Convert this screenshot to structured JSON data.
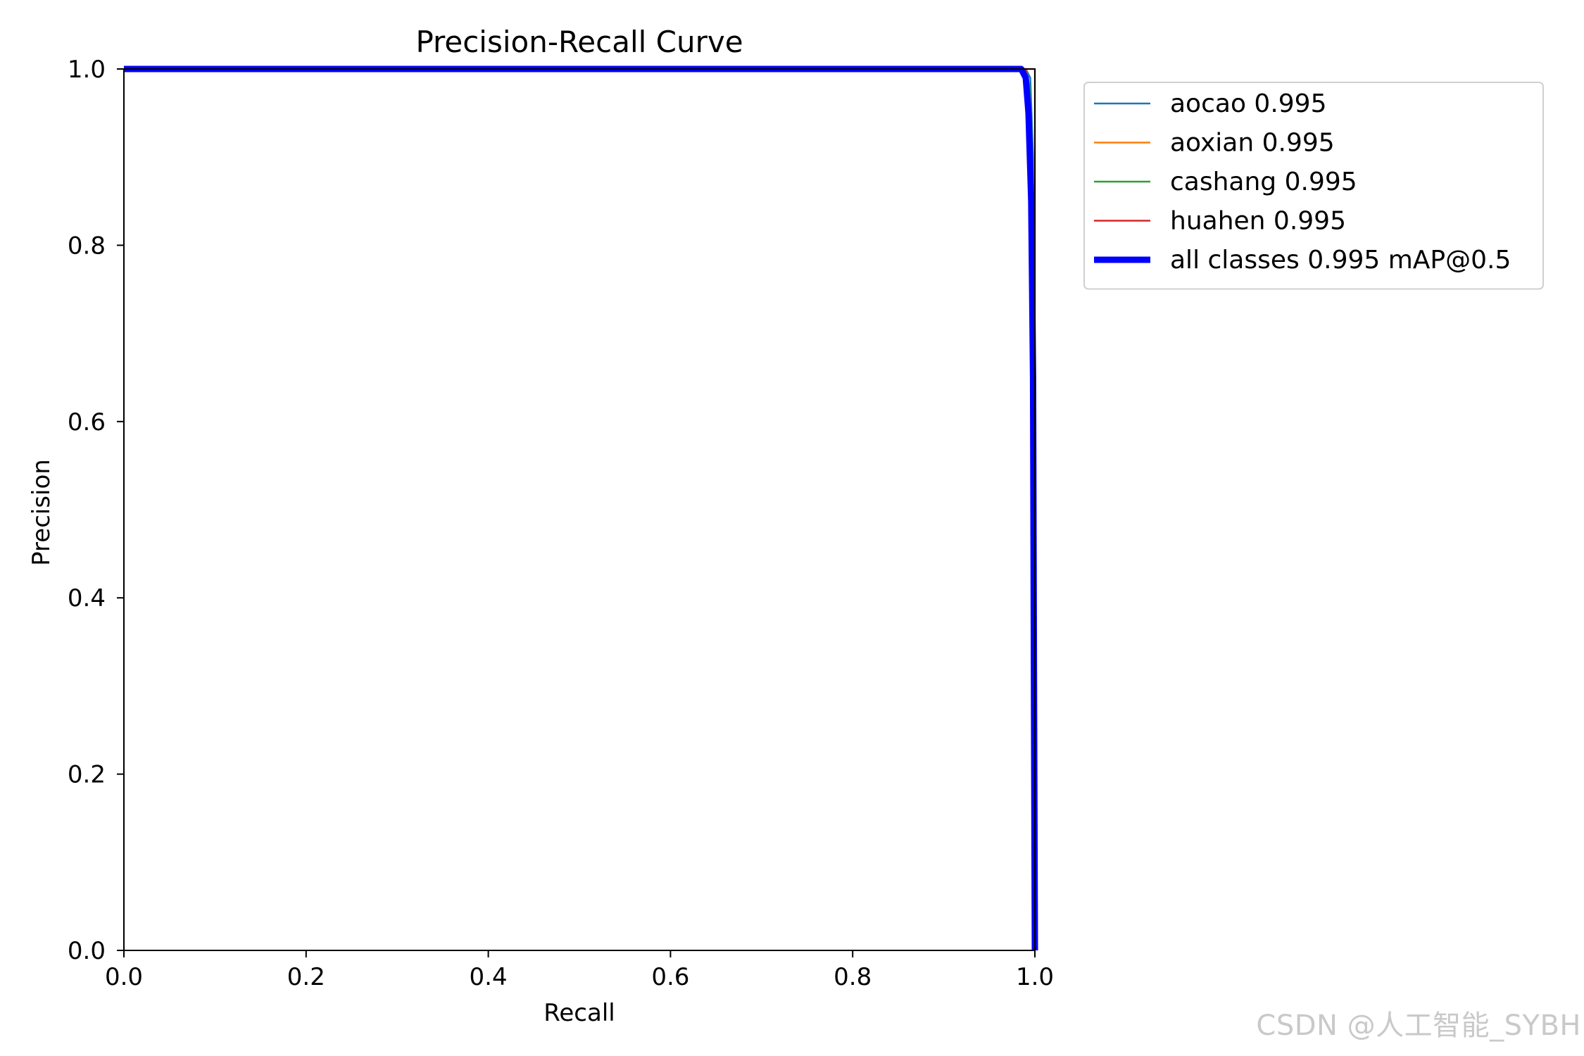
{
  "chart_data": {
    "type": "line",
    "title": "Precision-Recall Curve",
    "xlabel": "Recall",
    "ylabel": "Precision",
    "xlim": [
      0.0,
      1.0
    ],
    "ylim": [
      0.0,
      1.0
    ],
    "xticks": [
      "0.0",
      "0.2",
      "0.4",
      "0.6",
      "0.8",
      "1.0"
    ],
    "yticks": [
      "0.0",
      "0.2",
      "0.4",
      "0.6",
      "0.8",
      "1.0"
    ],
    "grid": false,
    "legend_position": "outside-upper-right",
    "series": [
      {
        "name": "aocao 0.995",
        "color": "#1f77b4",
        "width": "thin",
        "x": [
          0.0,
          0.99,
          0.995,
          0.998,
          1.0,
          1.0
        ],
        "y": [
          1.0,
          1.0,
          0.99,
          0.9,
          0.5,
          0.0
        ]
      },
      {
        "name": "aoxian 0.995",
        "color": "#ff7f0e",
        "width": "thin",
        "x": [
          0.0,
          0.99,
          0.995,
          1.0,
          1.0,
          1.0
        ],
        "y": [
          1.0,
          1.0,
          1.0,
          1.0,
          0.5,
          0.0
        ]
      },
      {
        "name": "cashang 0.995",
        "color": "#2ca02c",
        "width": "thin",
        "x": [
          0.0,
          0.99,
          0.994,
          0.998,
          1.0,
          1.0
        ],
        "y": [
          1.0,
          1.0,
          0.98,
          0.85,
          0.45,
          0.0
        ]
      },
      {
        "name": "huahen 0.995",
        "color": "#d62728",
        "width": "thin",
        "x": [
          0.0,
          0.99,
          0.993,
          0.997,
          0.999,
          1.0
        ],
        "y": [
          1.0,
          1.0,
          0.97,
          0.6,
          0.3,
          0.0
        ]
      },
      {
        "name": "all classes 0.995 mAP@0.5",
        "color": "#0000ff",
        "width": "thick",
        "x": [
          0.0,
          0.985,
          0.99,
          0.993,
          0.996,
          0.998,
          0.999,
          1.0
        ],
        "y": [
          1.0,
          1.0,
          0.99,
          0.95,
          0.85,
          0.65,
          0.3,
          0.0
        ]
      }
    ]
  },
  "watermark": "CSDN @人工智能_SYBH"
}
